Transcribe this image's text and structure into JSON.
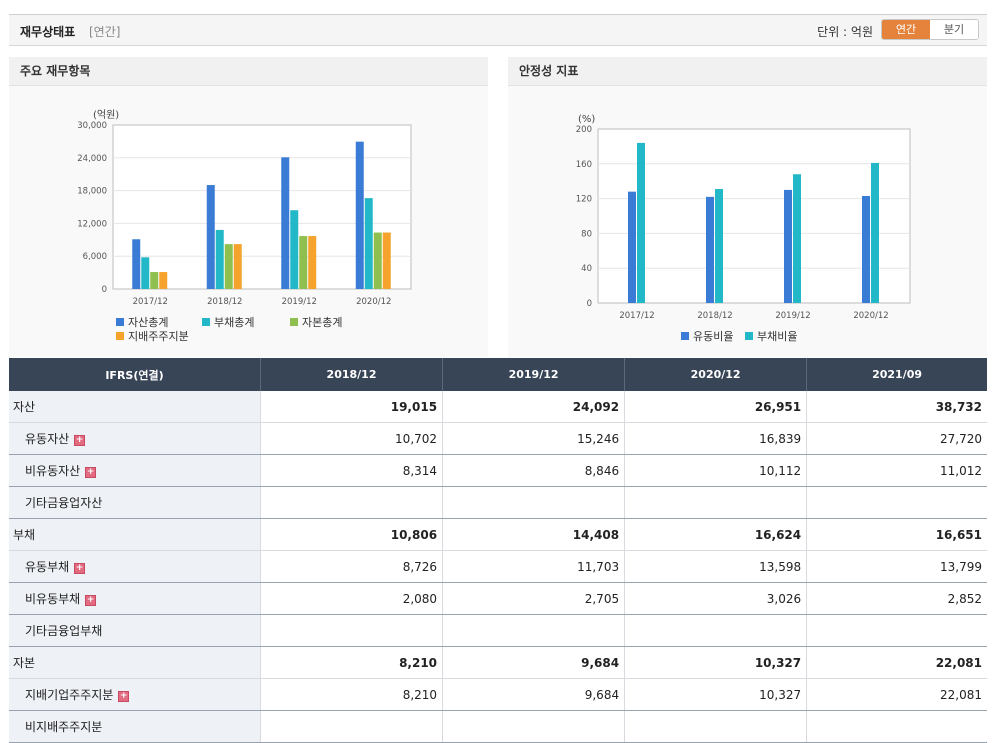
{
  "header": {
    "title": "재무상태표",
    "subtitle": "[연간]",
    "unit_label": "단위 : 억원",
    "toggle_annual": "연간",
    "toggle_quarter": "분기"
  },
  "left_panel": {
    "title": "주요 재무항목"
  },
  "right_panel": {
    "title": "안정성 지표"
  },
  "chart_data": [
    {
      "type": "bar",
      "ylabel": "(억원)",
      "ylim": [
        0,
        30000
      ],
      "yticks": [
        "30,000",
        "24,000",
        "18,000",
        "12,000",
        "6,000",
        "0"
      ],
      "categories": [
        "2017/12",
        "2018/12",
        "2019/12",
        "2020/12"
      ],
      "series": [
        {
          "name": "자산총계",
          "color": "#3a7bd5",
          "values": [
            9100,
            19015,
            24092,
            26951
          ]
        },
        {
          "name": "부채총계",
          "color": "#22b8c8",
          "values": [
            5800,
            10806,
            14408,
            16624
          ]
        },
        {
          "name": "자본총계",
          "color": "#8fbf4f",
          "values": [
            3100,
            8210,
            9684,
            10327
          ]
        },
        {
          "name": "지배주주지분",
          "color": "#f5a32c",
          "values": [
            3100,
            8210,
            9684,
            10327
          ]
        }
      ],
      "grid": true
    },
    {
      "type": "bar",
      "ylabel": "(%)",
      "ylim": [
        0,
        200
      ],
      "yticks": [
        "200",
        "160",
        "120",
        "80",
        "40",
        "0"
      ],
      "categories": [
        "2017/12",
        "2018/12",
        "2019/12",
        "2020/12"
      ],
      "series": [
        {
          "name": "유동비율",
          "color": "#3a7bd5",
          "values": [
            128,
            122,
            130,
            123
          ]
        },
        {
          "name": "부채비율",
          "color": "#22b8c8",
          "values": [
            184,
            131,
            148,
            161
          ]
        }
      ],
      "grid": true
    }
  ],
  "table": {
    "header": [
      "IFRS(연결)",
      "2018/12",
      "2019/12",
      "2020/12",
      "2021/09"
    ],
    "rows": [
      {
        "label": "자산",
        "values": [
          "19,015",
          "24,092",
          "26,951",
          "38,732"
        ]
      },
      {
        "label": "유동자산",
        "values": [
          "10,702",
          "15,246",
          "16,839",
          "27,720"
        ]
      },
      {
        "label": "비유동자산",
        "values": [
          "8,314",
          "8,846",
          "10,112",
          "11,012"
        ]
      },
      {
        "label": "기타금융업자산",
        "values": [
          "",
          "",
          "",
          ""
        ]
      },
      {
        "label": "부채",
        "values": [
          "10,806",
          "14,408",
          "16,624",
          "16,651"
        ]
      },
      {
        "label": "유동부채",
        "values": [
          "8,726",
          "11,703",
          "13,598",
          "13,799"
        ]
      },
      {
        "label": "비유동부채",
        "values": [
          "2,080",
          "2,705",
          "3,026",
          "2,852"
        ]
      },
      {
        "label": "기타금융업부채",
        "values": [
          "",
          "",
          "",
          ""
        ]
      },
      {
        "label": "자본",
        "values": [
          "8,210",
          "9,684",
          "10,327",
          "22,081"
        ]
      },
      {
        "label": "지배기업주주지분",
        "values": [
          "8,210",
          "9,684",
          "10,327",
          "22,081"
        ]
      },
      {
        "label": "비지배주주지분",
        "values": [
          "",
          "",
          "",
          ""
        ]
      }
    ]
  }
}
